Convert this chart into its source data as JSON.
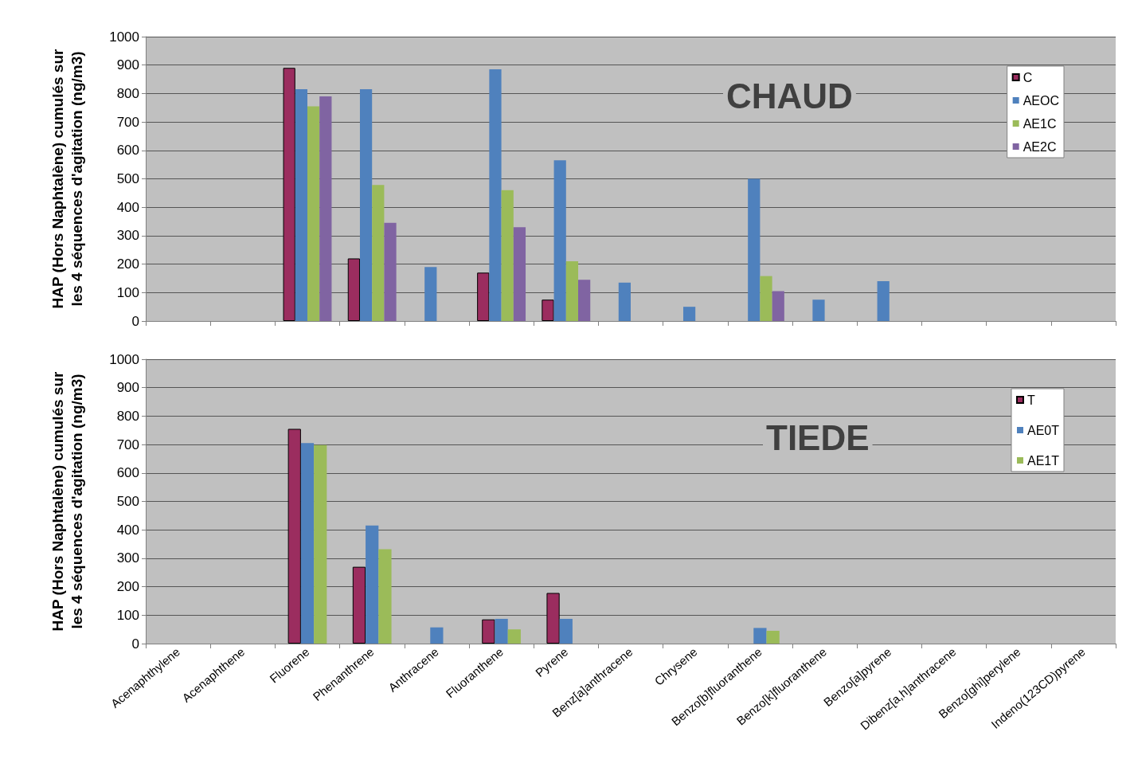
{
  "chart_data": [
    {
      "type": "bar",
      "title": "CHAUD",
      "ylabel": "HAP (Hors Naphtalène) cumulés sur\nles 4 séquences d'agitation (ng/m3)",
      "categories": [
        null,
        null,
        null,
        null,
        null,
        null,
        null,
        null,
        null,
        null,
        null,
        null,
        null,
        null,
        null
      ],
      "series": [
        {
          "name": "C",
          "color": "#9b2d5f",
          "values": [
            null,
            null,
            890,
            220,
            null,
            170,
            75,
            null,
            null,
            null,
            null,
            null,
            null,
            null,
            null
          ]
        },
        {
          "name": "AEOC",
          "color": "#4f81bd",
          "values": [
            null,
            null,
            815,
            815,
            190,
            885,
            565,
            135,
            50,
            500,
            75,
            140,
            null,
            null,
            null
          ]
        },
        {
          "name": "AE1C",
          "color": "#9bbb59",
          "values": [
            null,
            null,
            755,
            478,
            null,
            460,
            210,
            null,
            null,
            158,
            null,
            null,
            null,
            null,
            null
          ]
        },
        {
          "name": "AE2C",
          "color": "#8064a2",
          "values": [
            null,
            null,
            790,
            345,
            null,
            330,
            145,
            null,
            null,
            105,
            null,
            null,
            null,
            null,
            null
          ]
        }
      ],
      "ylim": [
        0,
        1000
      ],
      "yticks": [
        0,
        100,
        200,
        300,
        400,
        500,
        600,
        700,
        800,
        900,
        1000
      ],
      "grid": "y",
      "legend": "top right",
      "tick_labels": "y"
    },
    {
      "type": "bar",
      "title": "TIEDE",
      "ylabel": "HAP (Hors Naphtalène) cumulés sur\nles 4 séquences d'agitation (ng/m3)",
      "categories": [
        "Acenaphthylene",
        "Acenaphthene",
        "Fluorene",
        "Phenanthrene",
        "Anthracene",
        "Fluoranthene",
        "Pyrene",
        "Benz[a]anthracene",
        "Chrysene",
        "Benzo[b]fluoranthene",
        "Benzo[k]fluoranthene",
        "Benzo[a]pyrene",
        "Dibenz[a,h]anthracene",
        "Benzo[ghi]perylene",
        "Indeno(123CD)pyrene"
      ],
      "series": [
        {
          "name": "T",
          "color": "#9b2d5f",
          "values": [
            null,
            null,
            755,
            270,
            null,
            85,
            178,
            null,
            null,
            null,
            null,
            null,
            null,
            null,
            null
          ]
        },
        {
          "name": "AE0T",
          "color": "#4f81bd",
          "values": [
            null,
            null,
            705,
            415,
            57,
            87,
            87,
            null,
            null,
            55,
            null,
            null,
            null,
            null,
            null
          ]
        },
        {
          "name": "AE1T",
          "color": "#9bbb59",
          "values": [
            null,
            null,
            698,
            332,
            null,
            50,
            null,
            null,
            null,
            45,
            null,
            null,
            null,
            null,
            null
          ]
        }
      ],
      "ylim": [
        0,
        1000
      ],
      "yticks": [
        0,
        100,
        200,
        300,
        400,
        500,
        600,
        700,
        800,
        900,
        1000
      ],
      "grid": "y",
      "legend": "top right"
    }
  ]
}
